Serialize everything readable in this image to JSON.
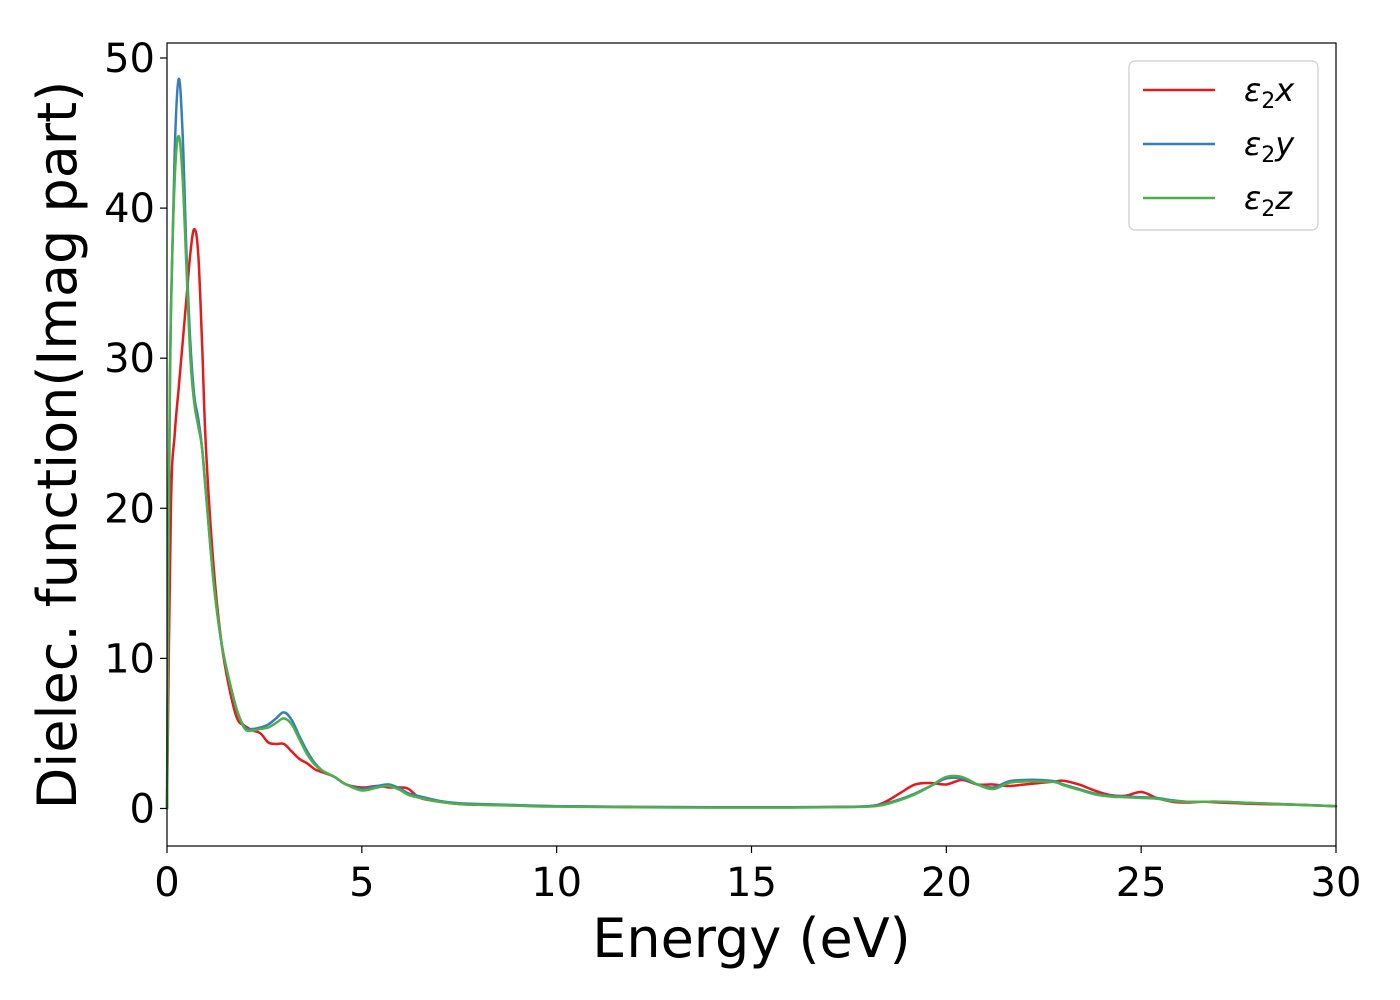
{
  "chart_data": {
    "type": "line",
    "title": "",
    "xlabel": "Energy (eV)",
    "ylabel": "Dielec. function(Imag part)",
    "xlim": [
      0,
      30
    ],
    "ylim": [
      -2.5,
      51
    ],
    "xticks": [
      0,
      5,
      10,
      15,
      20,
      25,
      30
    ],
    "yticks": [
      0,
      10,
      20,
      30,
      40,
      50
    ],
    "grid": false,
    "legend_position": "top-right",
    "series": [
      {
        "name": "ε2x",
        "legend_base": "ε",
        "legend_sub": "2",
        "legend_suffix": "x",
        "color": "#e41a1c",
        "x": [
          0,
          0.1,
          0.2,
          0.3,
          0.4,
          0.5,
          0.6,
          0.7,
          0.8,
          0.9,
          1.0,
          1.2,
          1.4,
          1.6,
          1.8,
          2.0,
          2.2,
          2.4,
          2.6,
          2.8,
          3.0,
          3.2,
          3.4,
          3.6,
          3.8,
          4.0,
          4.3,
          4.6,
          5.0,
          5.4,
          5.7,
          6.0,
          6.2,
          6.5,
          7.0,
          7.5,
          8,
          9,
          10,
          12,
          14,
          16,
          17,
          18,
          18.4,
          18.8,
          19.2,
          19.6,
          20.0,
          20.4,
          20.8,
          21.2,
          21.6,
          22.0,
          22.4,
          22.8,
          23.0,
          23.4,
          23.8,
          24.2,
          24.6,
          25.0,
          25.4,
          25.8,
          26.2,
          26.6,
          27.0,
          27.5,
          28,
          29,
          30
        ],
        "y": [
          0,
          20,
          25,
          28,
          31,
          34,
          37,
          38.6,
          37,
          31,
          24,
          16,
          11,
          8,
          6,
          5.5,
          5.2,
          5.0,
          4.4,
          4.3,
          4.3,
          3.8,
          3.3,
          3.0,
          2.6,
          2.4,
          2.1,
          1.6,
          1.4,
          1.5,
          1.4,
          1.4,
          1.3,
          0.7,
          0.45,
          0.3,
          0.25,
          0.2,
          0.15,
          0.1,
          0.08,
          0.08,
          0.1,
          0.15,
          0.4,
          1.0,
          1.6,
          1.7,
          1.6,
          1.9,
          1.6,
          1.6,
          1.5,
          1.6,
          1.7,
          1.8,
          1.85,
          1.6,
          1.2,
          0.9,
          0.85,
          1.1,
          0.7,
          0.45,
          0.4,
          0.45,
          0.4,
          0.35,
          0.3,
          0.25,
          0.15
        ]
      },
      {
        "name": "ε2y",
        "legend_base": "ε",
        "legend_sub": "2",
        "legend_suffix": "y",
        "color": "#377eb8",
        "x": [
          0,
          0.05,
          0.1,
          0.2,
          0.3,
          0.4,
          0.5,
          0.6,
          0.7,
          0.8,
          0.9,
          1.0,
          1.2,
          1.4,
          1.6,
          1.8,
          2.0,
          2.2,
          2.4,
          2.6,
          2.8,
          3.0,
          3.2,
          3.4,
          3.6,
          3.8,
          4.0,
          4.3,
          4.6,
          5.0,
          5.4,
          5.7,
          6.0,
          6.2,
          6.5,
          7.0,
          7.5,
          8,
          9,
          10,
          12,
          14,
          16,
          17,
          18,
          18.4,
          18.8,
          19.2,
          19.6,
          20.0,
          20.4,
          20.8,
          21.2,
          21.6,
          22.0,
          22.4,
          22.8,
          23.0,
          23.4,
          23.8,
          24.2,
          24.6,
          25.0,
          25.4,
          25.8,
          26.2,
          26.6,
          27.0,
          27.5,
          28,
          29,
          30
        ],
        "y": [
          0,
          20,
          33,
          44,
          48.6,
          45,
          37,
          31,
          27.5,
          26,
          24,
          21,
          15,
          11,
          8.5,
          6.5,
          5.4,
          5.3,
          5.4,
          5.6,
          6.0,
          6.4,
          5.9,
          4.8,
          3.8,
          3.0,
          2.5,
          2.1,
          1.6,
          1.3,
          1.5,
          1.6,
          1.3,
          1.0,
          0.8,
          0.5,
          0.35,
          0.3,
          0.22,
          0.15,
          0.1,
          0.08,
          0.08,
          0.1,
          0.15,
          0.3,
          0.6,
          1.0,
          1.5,
          2.0,
          2.0,
          1.6,
          1.4,
          1.8,
          1.9,
          1.9,
          1.8,
          1.6,
          1.3,
          1.0,
          0.85,
          0.8,
          0.75,
          0.7,
          0.55,
          0.45,
          0.45,
          0.45,
          0.4,
          0.35,
          0.25,
          0.15
        ]
      },
      {
        "name": "ε2z",
        "legend_base": "ε",
        "legend_sub": "2",
        "legend_suffix": "z",
        "color": "#4daf4a",
        "x": [
          0,
          0.05,
          0.1,
          0.2,
          0.3,
          0.4,
          0.5,
          0.6,
          0.7,
          0.8,
          0.9,
          1.0,
          1.2,
          1.4,
          1.6,
          1.8,
          2.0,
          2.2,
          2.4,
          2.6,
          2.8,
          3.0,
          3.2,
          3.4,
          3.6,
          3.8,
          4.0,
          4.3,
          4.6,
          5.0,
          5.4,
          5.7,
          6.0,
          6.2,
          6.5,
          7.0,
          7.5,
          8,
          9,
          10,
          12,
          14,
          16,
          17,
          18,
          18.4,
          18.8,
          19.2,
          19.6,
          20.0,
          20.4,
          20.8,
          21.2,
          21.6,
          22.0,
          22.4,
          22.8,
          23.0,
          23.4,
          23.8,
          24.2,
          24.6,
          25.0,
          25.4,
          25.8,
          26.2,
          26.6,
          27.0,
          27.5,
          28,
          29,
          30
        ],
        "y": [
          0,
          22,
          33,
          42,
          44.8,
          42,
          36,
          30,
          27,
          25.5,
          24,
          21,
          15,
          11,
          8.5,
          6.5,
          5.3,
          5.2,
          5.3,
          5.4,
          5.7,
          6.0,
          5.6,
          4.6,
          3.6,
          2.9,
          2.5,
          2.1,
          1.6,
          1.2,
          1.4,
          1.5,
          1.2,
          0.9,
          0.7,
          0.45,
          0.3,
          0.25,
          0.18,
          0.12,
          0.08,
          0.06,
          0.06,
          0.08,
          0.12,
          0.25,
          0.55,
          0.95,
          1.5,
          2.1,
          2.1,
          1.6,
          1.3,
          1.7,
          1.8,
          1.8,
          1.75,
          1.55,
          1.25,
          0.95,
          0.8,
          0.75,
          0.7,
          0.65,
          0.5,
          0.45,
          0.45,
          0.45,
          0.4,
          0.35,
          0.25,
          0.15
        ]
      }
    ]
  }
}
